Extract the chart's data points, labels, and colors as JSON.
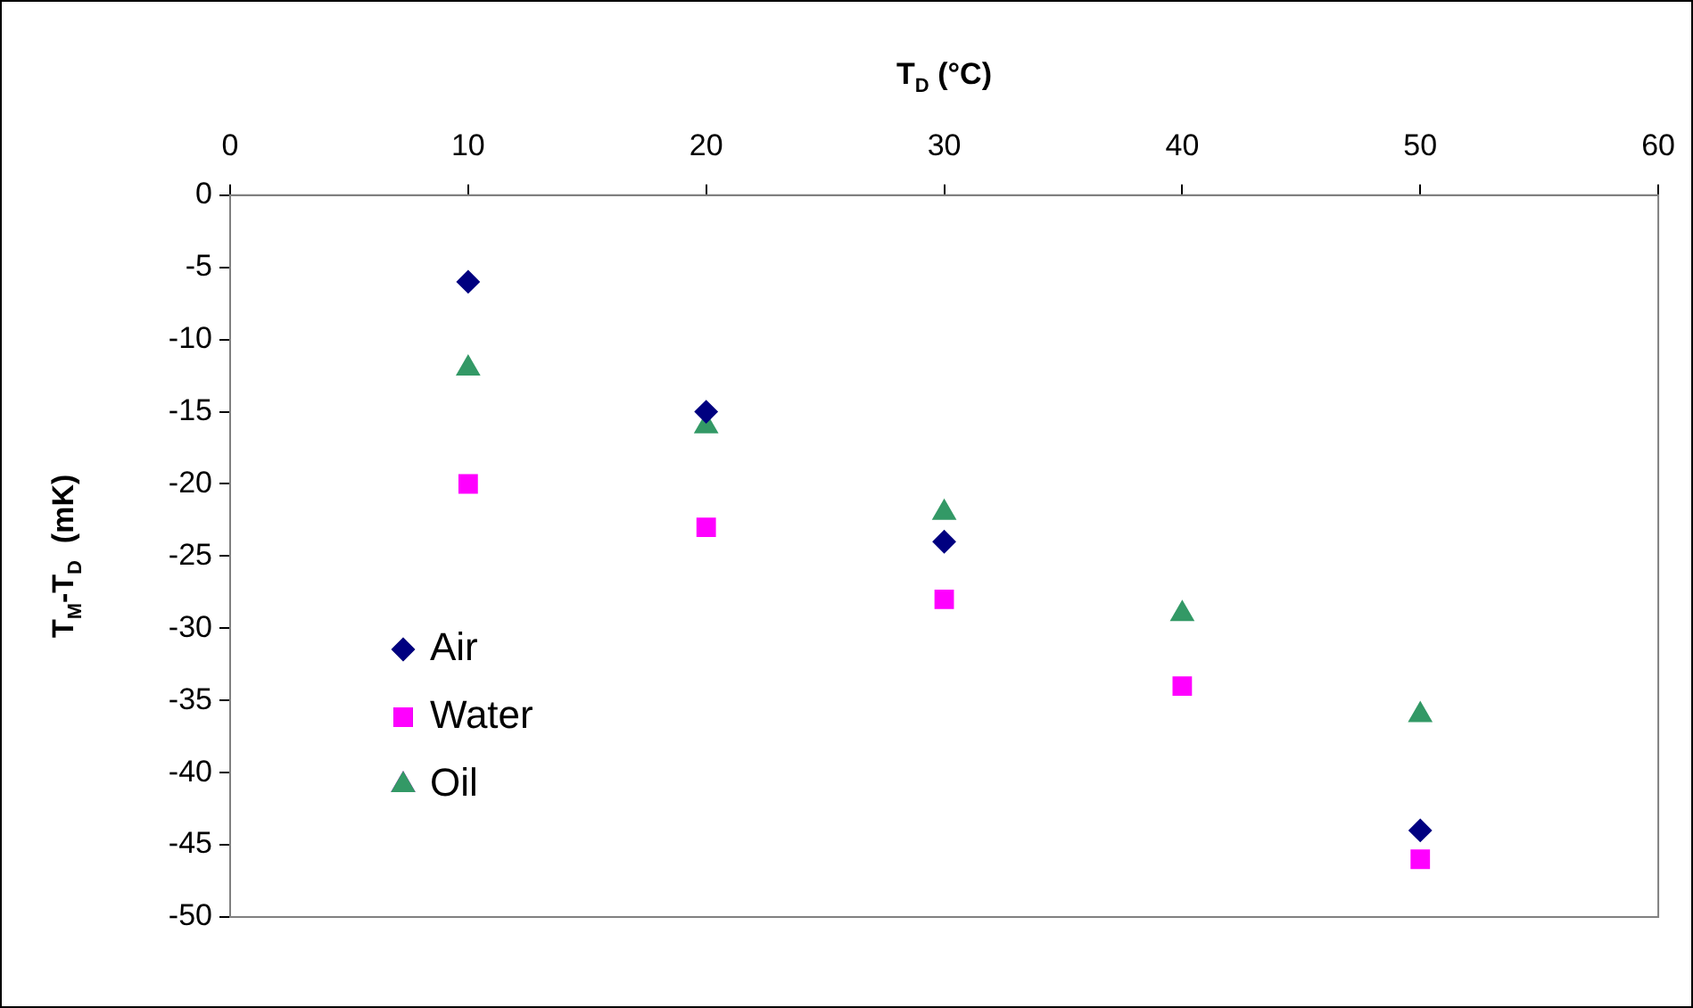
{
  "chart_data": {
    "type": "scatter",
    "xlabel": "T$_{D}$ (°C)",
    "ylabel": "T$_{M}$-T$_{D}$  (mK)",
    "xlim": [
      0,
      60
    ],
    "xticks": [
      0,
      10,
      20,
      30,
      40,
      50,
      60
    ],
    "ylim": [
      -50,
      0
    ],
    "yticks": [
      0,
      -5,
      -10,
      -15,
      -20,
      -25,
      -30,
      -35,
      -40,
      -45,
      -50
    ],
    "grid": false,
    "legend": "bottom left",
    "series": [
      {
        "name": "Air",
        "color": "#000080",
        "marker": "diamond",
        "x": [
          10,
          20,
          30,
          50
        ],
        "values": [
          -6,
          -15,
          -24,
          -44
        ]
      },
      {
        "name": "Water",
        "color": "#ff00ff",
        "marker": "square",
        "x": [
          10,
          20,
          30,
          40,
          50
        ],
        "values": [
          -20,
          -23,
          -28,
          -34,
          -46
        ]
      },
      {
        "name": "Oil",
        "color": "#339966",
        "marker": "triangle",
        "x": [
          10,
          20,
          30,
          40,
          50
        ],
        "values": [
          -12,
          -16,
          -22,
          -29,
          -36
        ]
      }
    ]
  }
}
